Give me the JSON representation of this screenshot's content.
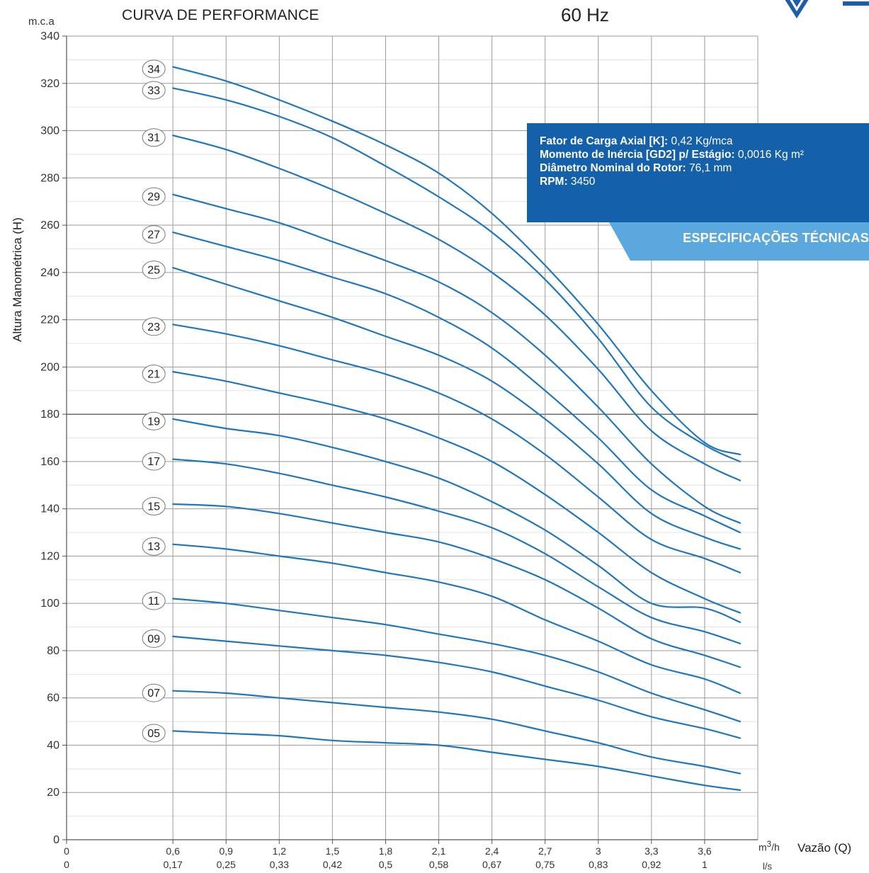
{
  "chart_data": {
    "type": "line",
    "title": "CURVA DE PERFORMANCE",
    "frequency": "60 Hz",
    "ylabel": "Altura Manométrica (H)",
    "yunit": "m.c.a",
    "xlabel": "Vazão (Q)",
    "xunit_primary": "m³/h",
    "xunit_primary_base": "m",
    "xunit_primary_exp": "3",
    "xunit_primary_tail": "/h",
    "xunit_secondary": "l/s",
    "xlim": [
      0,
      3.9
    ],
    "ylim": [
      0,
      340
    ],
    "grid": true,
    "line_color": "#1f76bd",
    "y_ticks": [
      "0",
      "20",
      "40",
      "60",
      "80",
      "100",
      "120",
      "140",
      "160",
      "180",
      "200",
      "220",
      "240",
      "260",
      "280",
      "300",
      "320",
      "340"
    ],
    "x_ticks": [
      {
        "x": 0,
        "m3h": "0",
        "ls": "0"
      },
      {
        "x": 0.6,
        "m3h": "0,6",
        "ls": "0,17"
      },
      {
        "x": 0.9,
        "m3h": "0,9",
        "ls": "0,25"
      },
      {
        "x": 1.2,
        "m3h": "1,2",
        "ls": "0,33"
      },
      {
        "x": 1.5,
        "m3h": "1,5",
        "ls": "0,42"
      },
      {
        "x": 1.8,
        "m3h": "1,8",
        "ls": "0,5"
      },
      {
        "x": 2.1,
        "m3h": "2,1",
        "ls": "0,58"
      },
      {
        "x": 2.4,
        "m3h": "2,4",
        "ls": "0,67"
      },
      {
        "x": 2.7,
        "m3h": "2,7",
        "ls": "0,75"
      },
      {
        "x": 3.0,
        "m3h": "3",
        "ls": "0,83"
      },
      {
        "x": 3.3,
        "m3h": "3,3",
        "ls": "0,92"
      },
      {
        "x": 3.6,
        "m3h": "3,6",
        "ls": "1"
      }
    ],
    "x": [
      0.6,
      0.9,
      1.2,
      1.5,
      1.8,
      2.1,
      2.4,
      2.7,
      3.0,
      3.3,
      3.6,
      3.8
    ],
    "series": [
      {
        "name": "34",
        "values": [
          327,
          321,
          313,
          304,
          294,
          282,
          265,
          243,
          218,
          190,
          168,
          163
        ]
      },
      {
        "name": "33",
        "values": [
          318,
          313,
          306,
          297,
          285,
          272,
          257,
          237,
          212,
          183,
          167,
          160
        ]
      },
      {
        "name": "31",
        "values": [
          298,
          292,
          284,
          275,
          265,
          254,
          240,
          222,
          199,
          173,
          159,
          152
        ]
      },
      {
        "name": "29",
        "values": [
          273,
          267,
          261,
          253,
          245,
          236,
          223,
          205,
          183,
          159,
          141,
          134
        ]
      },
      {
        "name": "27",
        "values": [
          257,
          251,
          245,
          238,
          231,
          221,
          208,
          190,
          170,
          148,
          137,
          130
        ]
      },
      {
        "name": "25",
        "values": [
          242,
          235,
          228,
          221,
          213,
          205,
          194,
          178,
          159,
          138,
          128,
          123
        ]
      },
      {
        "name": "23",
        "values": [
          218,
          214,
          209,
          203,
          197,
          189,
          178,
          163,
          145,
          127,
          119,
          113
        ]
      },
      {
        "name": "21",
        "values": [
          198,
          194,
          189,
          184,
          178,
          170,
          160,
          146,
          130,
          113,
          102,
          96
        ]
      },
      {
        "name": "19",
        "values": [
          178,
          174,
          171,
          166,
          160,
          153,
          143,
          131,
          116,
          100,
          98,
          92
        ]
      },
      {
        "name": "17",
        "values": [
          161,
          159,
          155,
          150,
          145,
          139,
          132,
          121,
          107,
          94,
          88,
          83
        ]
      },
      {
        "name": "15",
        "values": [
          142,
          141,
          138,
          134,
          130,
          126,
          119,
          110,
          98,
          85,
          78,
          73
        ]
      },
      {
        "name": "13",
        "values": [
          125,
          123,
          120,
          117,
          113,
          109,
          103,
          93,
          84,
          74,
          68,
          62
        ]
      },
      {
        "name": "11",
        "values": [
          102,
          100,
          97,
          94,
          91,
          87,
          83,
          78,
          71,
          62,
          55,
          50
        ]
      },
      {
        "name": "09",
        "values": [
          86,
          84,
          82,
          80,
          78,
          75,
          71,
          65,
          59,
          52,
          47,
          43
        ]
      },
      {
        "name": "07",
        "values": [
          63,
          62,
          60,
          58,
          56,
          54,
          51,
          46,
          41,
          35,
          31,
          28
        ]
      },
      {
        "name": "05",
        "values": [
          46,
          45,
          44,
          42,
          41,
          40,
          37,
          34,
          31,
          27,
          23,
          21
        ]
      }
    ]
  },
  "specs": {
    "axial_load_label": "Fator de Carga Axial [K]:",
    "axial_load_value": "0,42 Kg/mca",
    "inertia_label": "Momento de Inércia [GD2] p/ Estágio:",
    "inertia_value": "0,0016 Kg m²",
    "rotor_label": "Diâmetro Nominal do Rotor:",
    "rotor_value": "76,1 mm",
    "rpm_label": "RPM:",
    "rpm_value": "3450",
    "tab_title": "ESPECIFICAÇÕES TÉCNICAS"
  }
}
